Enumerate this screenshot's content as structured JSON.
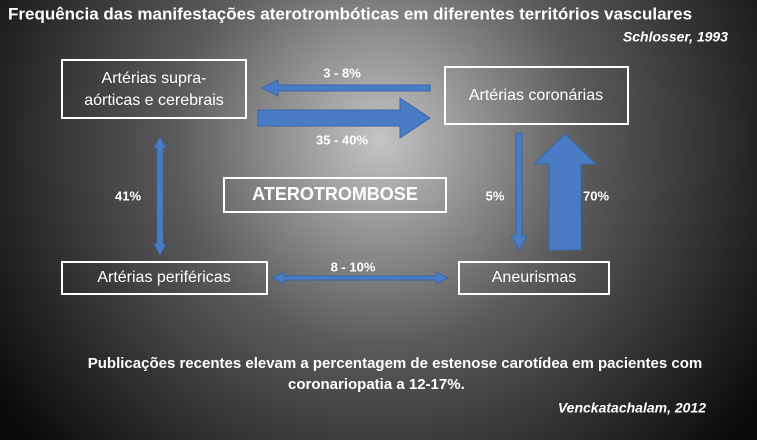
{
  "title": "Frequência das manifestações aterotrombóticas em diferentes territórios vasculares",
  "citation": "Schlosser, 1993",
  "nodes": [
    {
      "label_lines": [
        "Artérias supra-",
        "aórticas e cerebrais"
      ]
    },
    {
      "label": "Artérias coronárias"
    },
    {
      "label": "ATEROTROMBOSE"
    },
    {
      "label": "Artérias periféricas"
    },
    {
      "label": "Aneurismas"
    }
  ],
  "edges": [
    {
      "label": "3 - 8%"
    },
    {
      "label": "35 - 40%"
    },
    {
      "label": "41%"
    },
    {
      "label": "5%"
    },
    {
      "label": "70%"
    },
    {
      "label": "8 - 10%"
    }
  ],
  "note": {
    "lines": [
      "Publicações recentes elevam a percentagem de estenose carotídea em pacientes com",
      "coronariopatia a 12-17%."
    ],
    "citation": "Venckatachalam, 2012"
  }
}
